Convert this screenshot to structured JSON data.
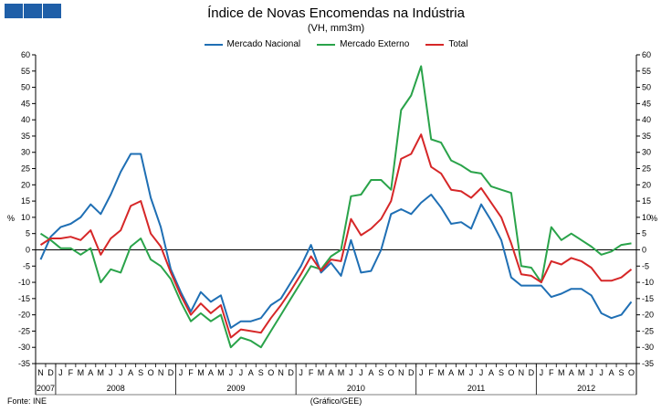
{
  "header": {
    "title": "Índice de Novas Encomendas na Indústria",
    "subtitle": "(VH, mm3m)"
  },
  "footer": {
    "source": "Fonte: INE",
    "credit": "(Gráfico/GEE)"
  },
  "colors": {
    "logo": "#1f5fa8",
    "axis": "#000000"
  },
  "chart_data": {
    "type": "line",
    "title": "Índice de Novas Encomendas na Indústria",
    "subtitle": "(VH, mm3m)",
    "ylabel_left": "%",
    "ylabel_right": "%",
    "ylim": [
      -35,
      60
    ],
    "yticks": [
      -35,
      -30,
      -25,
      -20,
      -15,
      -10,
      -5,
      0,
      5,
      10,
      15,
      20,
      25,
      30,
      35,
      40,
      45,
      50,
      55,
      60
    ],
    "legend_position": "top-center",
    "x_months": [
      "N",
      "D",
      "J",
      "F",
      "M",
      "A",
      "M",
      "J",
      "J",
      "A",
      "S",
      "O",
      "N",
      "D",
      "J",
      "F",
      "M",
      "A",
      "M",
      "J",
      "J",
      "A",
      "S",
      "O",
      "N",
      "D",
      "J",
      "F",
      "M",
      "A",
      "M",
      "J",
      "J",
      "A",
      "S",
      "O",
      "N",
      "D",
      "J",
      "F",
      "M",
      "A",
      "M",
      "J",
      "J",
      "A",
      "S",
      "O",
      "N",
      "D",
      "J",
      "F",
      "M",
      "A",
      "M",
      "J",
      "J",
      "A",
      "S",
      "O"
    ],
    "year_groups": [
      {
        "label": "2007",
        "months": 2
      },
      {
        "label": "2008",
        "months": 12
      },
      {
        "label": "2009",
        "months": 12
      },
      {
        "label": "2010",
        "months": 12
      },
      {
        "label": "2011",
        "months": 12
      },
      {
        "label": "2012",
        "months": 10
      }
    ],
    "series": [
      {
        "name": "Mercado Nacional",
        "color": "#1f6fb4",
        "values": [
          -3,
          4,
          7,
          8,
          10,
          14,
          11,
          17,
          24,
          29.5,
          29.5,
          16,
          7,
          -6,
          -13,
          -19,
          -13,
          -16,
          -14,
          -24,
          -22,
          -22,
          -21,
          -17,
          -15,
          -10,
          -5,
          1.5,
          -7,
          -4,
          -8,
          3,
          -7,
          -6.5,
          0,
          11,
          12.5,
          11,
          14.5,
          17,
          13,
          8,
          8.5,
          6.5,
          14,
          9,
          3,
          -8.5,
          -11,
          -11,
          -11,
          -14.5,
          -13.5,
          -12,
          -12,
          -14,
          -19.5,
          -21,
          -20,
          -16
        ]
      },
      {
        "name": "Mercado Externo",
        "color": "#2aa34a",
        "values": [
          5,
          3,
          0.5,
          0.5,
          -1.5,
          0.5,
          -10,
          -6,
          -7,
          1,
          3.5,
          -3,
          -5,
          -9,
          -16,
          -22,
          -19.5,
          -22,
          -20,
          -30,
          -27,
          -28,
          -30,
          -25,
          -20,
          -15,
          -10,
          -5,
          -6,
          -2,
          0,
          16.5,
          17,
          21.5,
          21.5,
          18.5,
          43,
          47.5,
          56.5,
          34,
          33,
          27.5,
          26,
          24,
          23.5,
          19.5,
          18.5,
          17.5,
          -5,
          -5.5,
          -10,
          7,
          3,
          5,
          3,
          1,
          -1.5,
          -0.5,
          1.5,
          2
        ]
      },
      {
        "name": "Total",
        "color": "#d62728",
        "values": [
          1.5,
          3.5,
          3.5,
          4,
          3,
          6,
          -1.5,
          3.5,
          6,
          13.5,
          15,
          5,
          1,
          -7,
          -14,
          -20,
          -16.5,
          -19.5,
          -17,
          -27,
          -24.5,
          -25,
          -25.5,
          -21,
          -17,
          -12.5,
          -7.5,
          -2,
          -6.5,
          -3,
          -3.5,
          9.5,
          4.5,
          6.5,
          9.5,
          15,
          28,
          29.5,
          35.5,
          25.5,
          23.5,
          18.5,
          18,
          16,
          19,
          14.5,
          10,
          2,
          -7.5,
          -8,
          -10,
          -3.5,
          -4.5,
          -2.5,
          -3.5,
          -5.5,
          -9.5,
          -9.5,
          -8.5,
          -6
        ]
      }
    ]
  }
}
